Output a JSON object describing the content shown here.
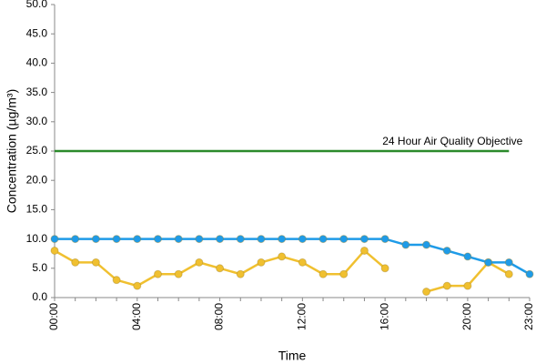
{
  "chart_data": {
    "type": "line",
    "y_label": "Concentration (µg/m³)",
    "x_label": "Time",
    "categories": [
      "00:00",
      null,
      null,
      null,
      "04:00",
      null,
      null,
      null,
      "08:00",
      null,
      null,
      null,
      "12:00",
      null,
      null,
      null,
      "16:00",
      null,
      null,
      null,
      "20:00",
      null,
      null,
      "23:00"
    ],
    "series": [
      {
        "color": "#1e9be8",
        "values": [
          10,
          10,
          10,
          10,
          10,
          10,
          10,
          10,
          10,
          10,
          10,
          10,
          10,
          10,
          10,
          10,
          10,
          9,
          9,
          8,
          7,
          6,
          6,
          4
        ]
      },
      {
        "color": "#f0c030",
        "values": [
          8,
          6,
          6,
          3,
          2,
          4,
          4,
          6,
          5,
          4,
          6,
          7,
          6,
          4,
          4,
          8,
          5,
          null,
          1,
          2,
          2,
          6,
          4,
          null
        ]
      }
    ],
    "reference": {
      "label": "24 Hour Air Quality Objective",
      "value": 25,
      "color": "#2a8a2a"
    },
    "ylim": [
      0,
      50
    ],
    "yticks": [
      {
        "value": 0,
        "label": "0.0"
      },
      {
        "value": 5,
        "label": "5.0"
      },
      {
        "value": 10,
        "label": "10.0"
      },
      {
        "value": 15,
        "label": "15.0"
      },
      {
        "value": 20,
        "label": "20.0"
      },
      {
        "value": 25,
        "label": "25.0"
      },
      {
        "value": 30,
        "label": "30.0"
      },
      {
        "value": 35,
        "label": "35.0"
      },
      {
        "value": 40,
        "label": "40.0"
      },
      {
        "value": 45,
        "label": "45.0"
      },
      {
        "value": 50,
        "label": "50.0"
      }
    ]
  }
}
